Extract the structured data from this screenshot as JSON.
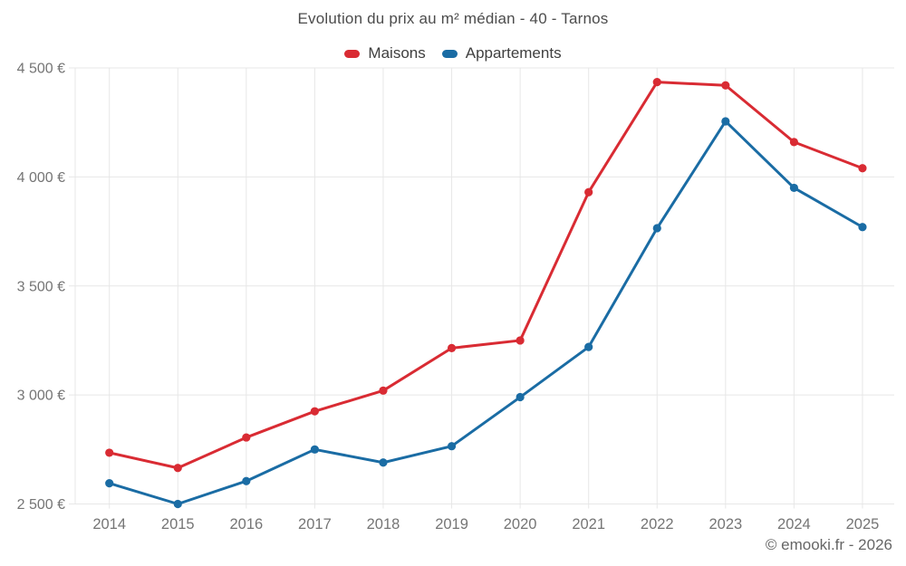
{
  "page": {
    "credit": "© emooki.fr - 2026"
  },
  "chart_data": {
    "type": "line",
    "title": "Evolution du prix au m² médian - 40 - Tarnos",
    "categories": [
      "2014",
      "2015",
      "2016",
      "2017",
      "2018",
      "2019",
      "2020",
      "2021",
      "2022",
      "2023",
      "2024",
      "2025"
    ],
    "series": [
      {
        "name": "Maisons",
        "color": "#d92b33",
        "values": [
          2735,
          2665,
          2805,
          2925,
          3020,
          3215,
          3250,
          3930,
          4435,
          4420,
          4160,
          4040
        ]
      },
      {
        "name": "Appartements",
        "color": "#1a6ca4",
        "values": [
          2595,
          2500,
          2605,
          2750,
          2690,
          2765,
          2990,
          3220,
          3765,
          4255,
          3950,
          3770
        ]
      }
    ],
    "ylim": [
      2500,
      4500
    ],
    "y_ticks": [
      {
        "value": 2500,
        "label": "2 500 €"
      },
      {
        "value": 3000,
        "label": "3 000 €"
      },
      {
        "value": 3500,
        "label": "3 500 €"
      },
      {
        "value": 4000,
        "label": "4 000 €"
      },
      {
        "value": 4500,
        "label": "4 500 €"
      }
    ],
    "legend_position": "top",
    "grid": true
  },
  "colors": {
    "grid": "#e7e7e7",
    "axis_text": "#757575",
    "title_text": "#4c4c4c",
    "legend_text": "#3f3f3f",
    "credit_text": "#666666",
    "background": "#ffffff"
  }
}
